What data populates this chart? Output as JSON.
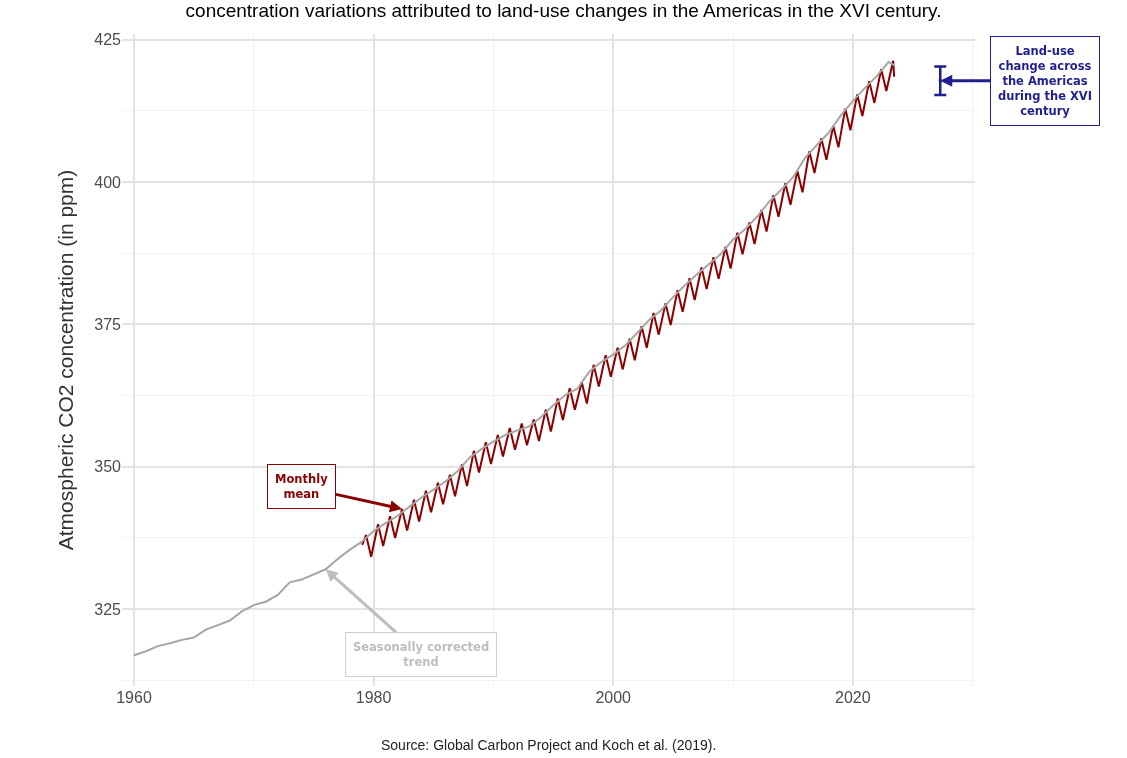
{
  "chart_data": {
    "type": "line",
    "title": "concentration variations attributed to land-use changes in the Americas in the XVI century.",
    "ylabel": "Atmospheric CO2 concentration (in ppm)",
    "xlim": [
      1959,
      2030.2
    ],
    "xticks": [
      1960,
      {
        "value": 1970,
        "label": null
      },
      1980,
      {
        "value": 1990,
        "label": null
      },
      2000,
      {
        "value": 2010,
        "label": null
      },
      2020,
      {
        "value": 2030,
        "label": null
      }
    ],
    "ylim": [
      311.5,
      426
    ],
    "yticks": [
      {
        "value": 312.5,
        "label": null
      },
      325,
      {
        "value": 337.5,
        "label": null
      },
      350,
      {
        "value": 362.5,
        "label": null
      },
      375,
      {
        "value": 387.5,
        "label": null
      },
      400,
      {
        "value": 412.5,
        "label": null
      },
      425
    ],
    "grid": true,
    "line_style": "solid",
    "marker": "none",
    "series": [
      {
        "color": "#8b0000",
        "x": [
          1979.05,
          1979.37,
          1979.8,
          1980.37,
          1980.8,
          1981.37,
          1981.8,
          1982.37,
          1982.8,
          1983.37,
          1983.8,
          1984.37,
          1984.8,
          1985.37,
          1985.8,
          1986.37,
          1986.8,
          1987.37,
          1987.8,
          1988.37,
          1988.8,
          1989.37,
          1989.8,
          1990.37,
          1990.8,
          1991.37,
          1991.8,
          1992.37,
          1992.8,
          1993.37,
          1993.8,
          1994.37,
          1994.8,
          1995.37,
          1995.8,
          1996.37,
          1996.8,
          1997.37,
          1997.8,
          1998.37,
          1998.8,
          1999.37,
          1999.8,
          2000.37,
          2000.8,
          2001.37,
          2001.8,
          2002.37,
          2002.8,
          2003.37,
          2003.8,
          2004.37,
          2004.8,
          2005.37,
          2005.8,
          2006.37,
          2006.8,
          2007.37,
          2007.8,
          2008.37,
          2008.8,
          2009.37,
          2009.8,
          2010.37,
          2010.8,
          2011.37,
          2011.8,
          2012.37,
          2012.8,
          2013.37,
          2013.8,
          2014.37,
          2014.8,
          2015.37,
          2015.8,
          2016.37,
          2016.8,
          2017.37,
          2017.8,
          2018.37,
          2018.8,
          2019.37,
          2019.8,
          2020.37,
          2020.8,
          2021.37,
          2021.8,
          2022.37,
          2022.8,
          2023.37,
          2023.45
        ],
        "values": [
          336.3,
          338.0,
          334.2,
          339.9,
          336.1,
          341.3,
          337.5,
          342.6,
          338.8,
          344.2,
          340.4,
          345.8,
          342.0,
          347.2,
          343.4,
          348.6,
          344.8,
          350.4,
          346.6,
          352.8,
          349.0,
          354.3,
          350.5,
          355.6,
          351.8,
          356.8,
          353.0,
          357.6,
          353.8,
          358.3,
          354.5,
          360.0,
          356.2,
          362.0,
          358.2,
          363.8,
          360.0,
          364.9,
          361.1,
          367.9,
          364.1,
          369.6,
          365.8,
          370.9,
          367.1,
          372.5,
          368.7,
          374.7,
          370.9,
          377.0,
          373.2,
          378.7,
          374.9,
          381.0,
          377.2,
          383.1,
          379.3,
          385.0,
          381.2,
          386.8,
          383.0,
          388.6,
          384.8,
          391.1,
          387.3,
          392.9,
          389.1,
          395.1,
          391.3,
          397.7,
          393.9,
          399.8,
          396.0,
          402.0,
          398.2,
          405.4,
          401.6,
          407.7,
          403.9,
          409.9,
          406.1,
          412.9,
          409.1,
          415.4,
          411.6,
          417.7,
          413.9,
          419.8,
          416.0,
          421.3,
          418.5
        ]
      },
      {
        "color": "#a6a6a6",
        "x": [
          1960,
          1961,
          1962,
          1963,
          1964,
          1965,
          1966,
          1967,
          1968,
          1969,
          1970,
          1971,
          1972,
          1973,
          1974,
          1975,
          1976,
          1977,
          1978,
          1979,
          1980,
          1981,
          1982,
          1983,
          1984,
          1985,
          1986,
          1987,
          1988,
          1989,
          1990,
          1991,
          1992,
          1993,
          1994,
          1995,
          1996,
          1997,
          1998,
          1999,
          2000,
          2001,
          2002,
          2003,
          2004,
          2005,
          2006,
          2007,
          2008,
          2009,
          2010,
          2011,
          2012,
          2013,
          2014,
          2015,
          2016,
          2017,
          2018,
          2019,
          2020,
          2021,
          2022,
          2023,
          2023.45
        ],
        "values": [
          316.9,
          317.6,
          318.5,
          319.0,
          319.6,
          320.0,
          321.4,
          322.2,
          323.0,
          324.6,
          325.7,
          326.3,
          327.5,
          329.7,
          330.2,
          331.1,
          332.0,
          333.8,
          335.4,
          336.8,
          338.7,
          340.1,
          341.4,
          343.0,
          344.6,
          346.0,
          347.4,
          349.2,
          351.6,
          353.1,
          354.4,
          355.6,
          356.4,
          357.1,
          358.8,
          360.8,
          362.6,
          363.7,
          366.7,
          368.4,
          369.7,
          371.3,
          373.5,
          375.8,
          377.5,
          379.8,
          381.9,
          383.8,
          385.6,
          387.4,
          389.9,
          391.7,
          393.9,
          396.5,
          398.6,
          400.8,
          404.2,
          406.5,
          408.7,
          411.7,
          414.2,
          416.5,
          418.6,
          421.1,
          420.5
        ]
      },
      {
        "type": "scatter",
        "marker": "square",
        "color": "#1f1f8f",
        "x": [
          2027.3
        ],
        "values": [
          417.8
        ],
        "errors": [
          2.5
        ]
      }
    ],
    "annotations": [
      {
        "text": "Monthly mean",
        "x": 1982.37,
        "y": 342.6
      },
      {
        "text": "Seasonally corrected trend",
        "x": 1976,
        "y": 332.0
      },
      {
        "text": "Land-use change across the Americas during the XVI century",
        "x": 2027.3,
        "y": 417.8
      },
      "Source: Global Carbon Project and Koch et al. (2019)."
    ]
  }
}
